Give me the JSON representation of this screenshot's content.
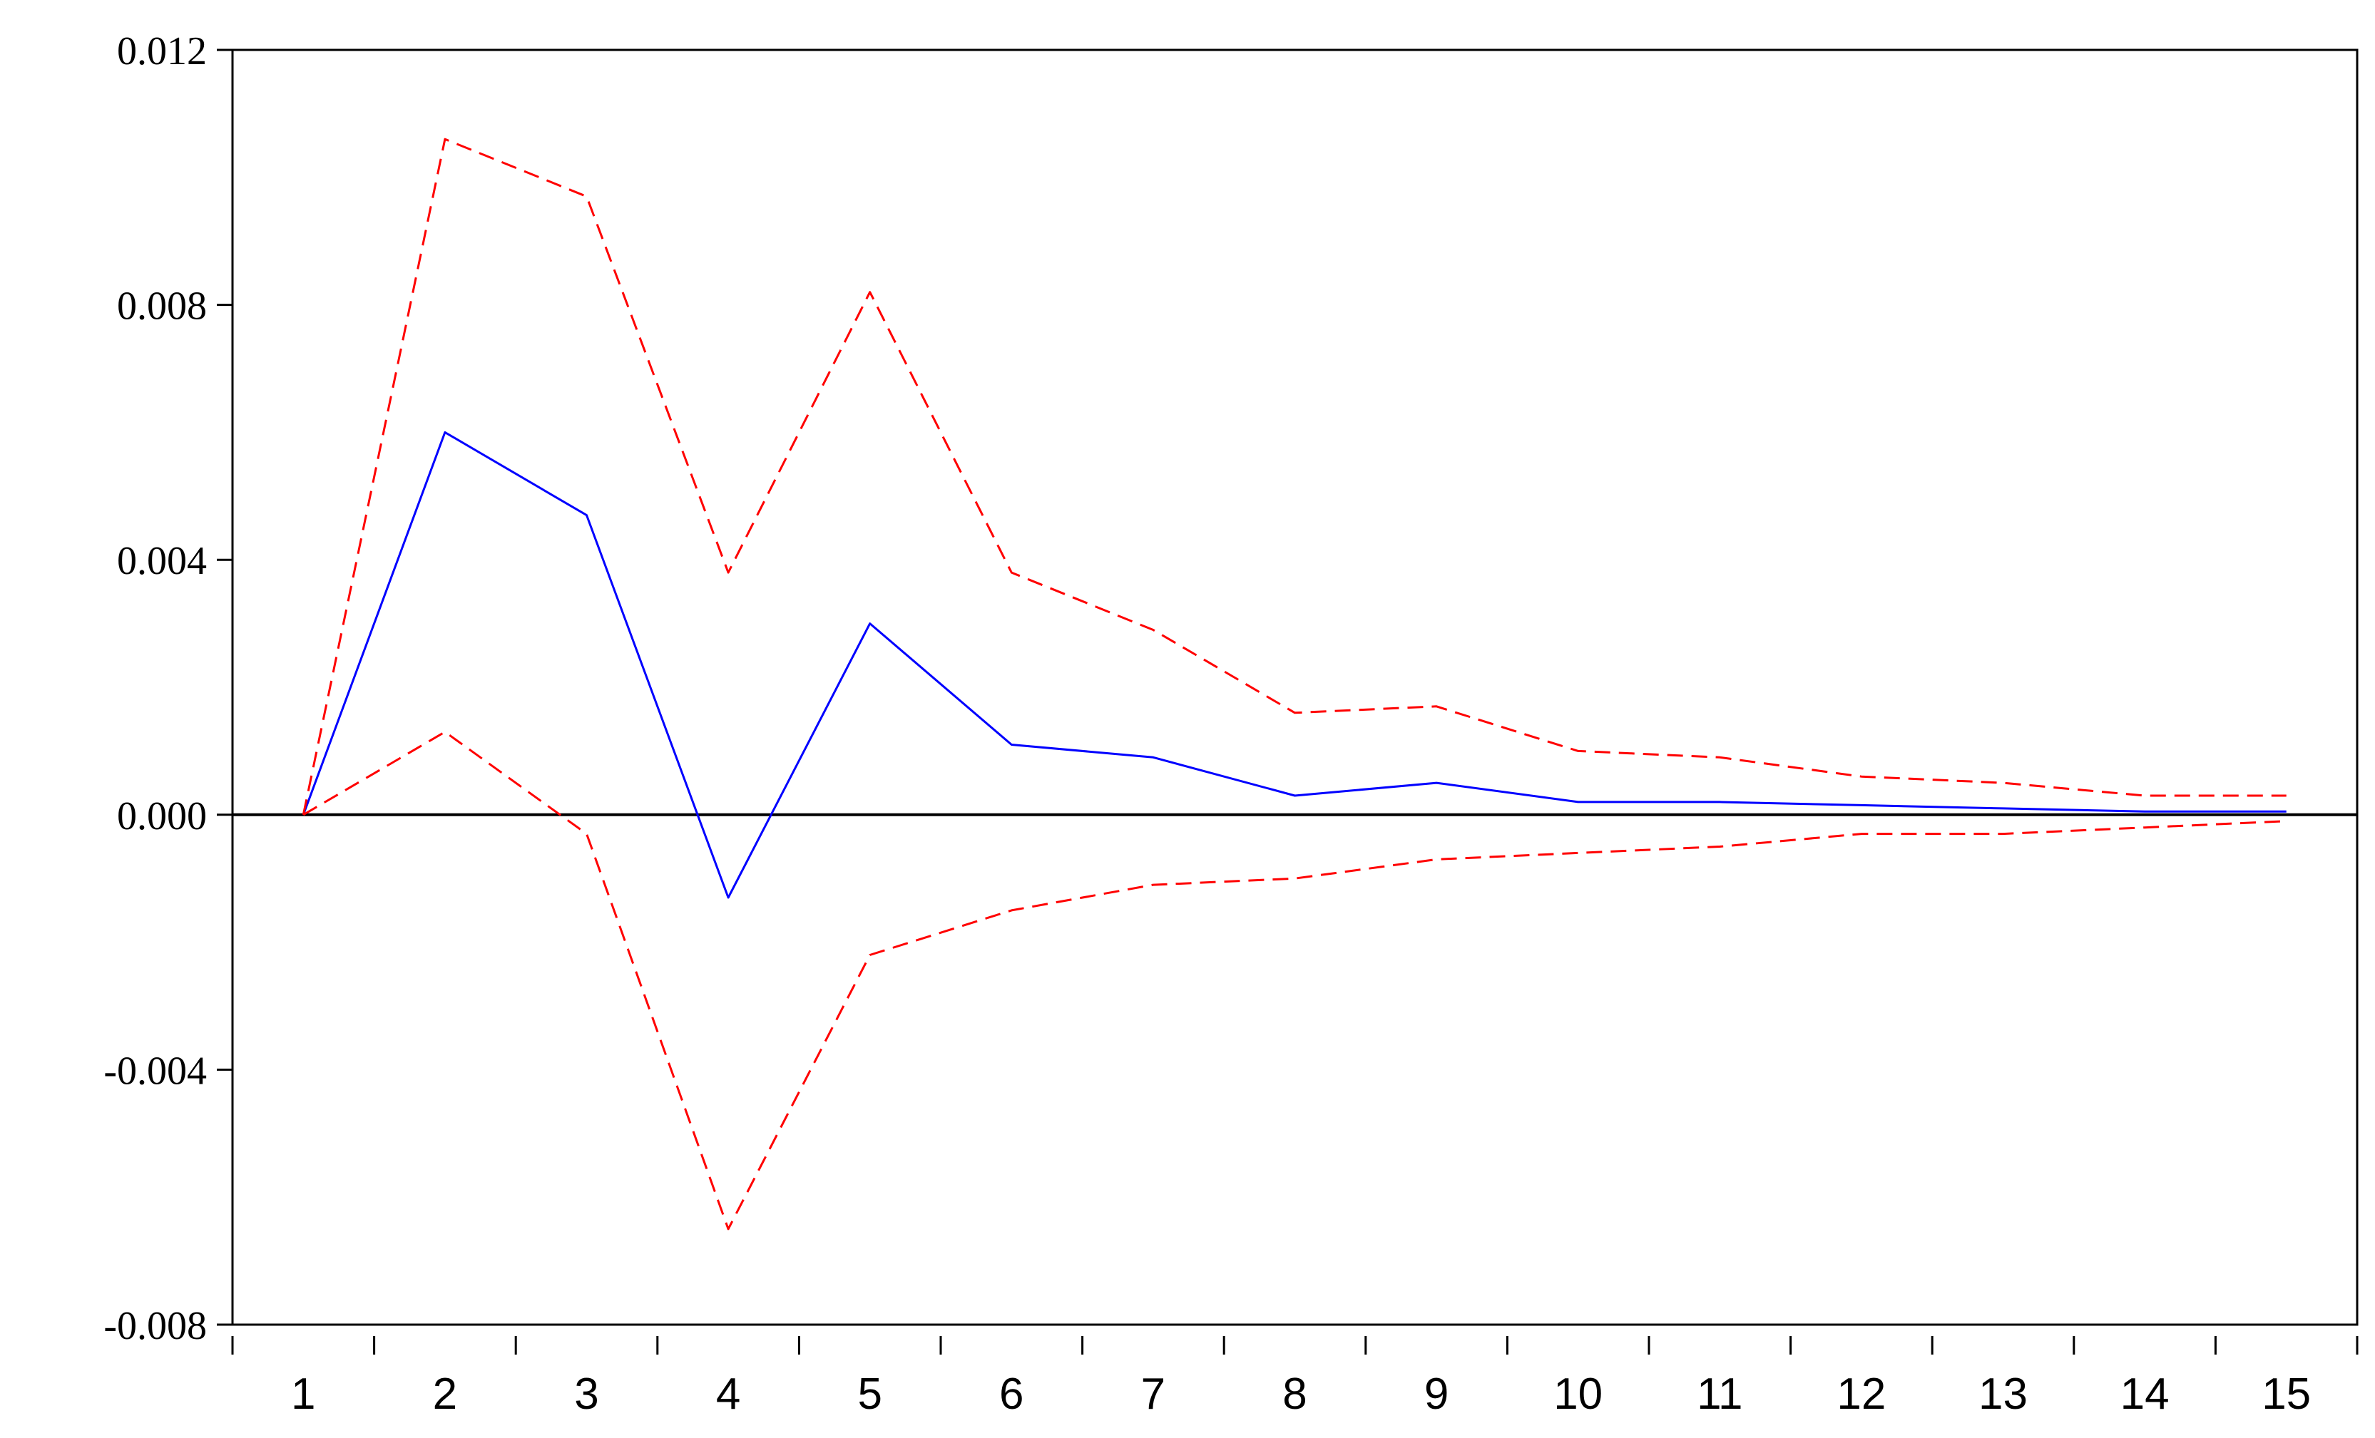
{
  "chart_data": {
    "type": "line",
    "title": "",
    "xlabel": "",
    "ylabel": "",
    "x": [
      1,
      2,
      3,
      4,
      5,
      6,
      7,
      8,
      9,
      10,
      11,
      12,
      13,
      14,
      15
    ],
    "xlim": [
      0.5,
      15.5
    ],
    "ylim": [
      -0.008,
      0.012
    ],
    "yticks": [
      0.012,
      0.008,
      0.004,
      0.0,
      -0.004,
      -0.008
    ],
    "ytick_labels": [
      "0.012",
      "0.008",
      "0.004",
      "0.000",
      "-0.004",
      "-0.008"
    ],
    "xtick_labels": [
      "1",
      "2",
      "3",
      "4",
      "5",
      "6",
      "7",
      "8",
      "9",
      "10",
      "11",
      "12",
      "13",
      "14",
      "15"
    ],
    "grid": false,
    "zero_line": true,
    "series": [
      {
        "role": "response",
        "color": "#0000ff",
        "style": "solid",
        "values": [
          0.0,
          0.006,
          0.0047,
          -0.0013,
          0.003,
          0.0011,
          0.0009,
          0.0003,
          0.0005,
          0.0002,
          0.0002,
          0.00015,
          0.0001,
          5e-05,
          5e-05
        ]
      },
      {
        "role": "upper-band",
        "color": "#ff0000",
        "style": "dashed",
        "values": [
          0.0,
          0.0106,
          0.0097,
          0.0038,
          0.0082,
          0.0038,
          0.0029,
          0.0016,
          0.0017,
          0.001,
          0.0009,
          0.0006,
          0.0005,
          0.0003,
          0.0003
        ]
      },
      {
        "role": "lower-band",
        "color": "#ff0000",
        "style": "dashed",
        "values": [
          0.0,
          0.0013,
          -0.0003,
          -0.0065,
          -0.0022,
          -0.0015,
          -0.0011,
          -0.001,
          -0.0007,
          -0.0006,
          -0.0005,
          -0.0003,
          -0.0003,
          -0.0002,
          -0.0001
        ]
      }
    ]
  }
}
